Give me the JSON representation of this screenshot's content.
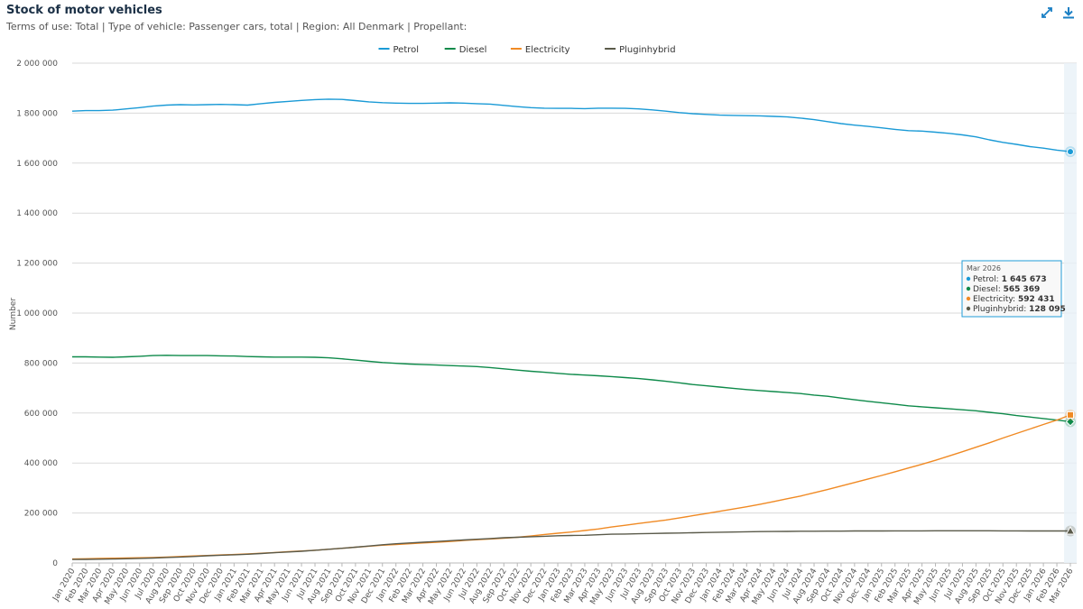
{
  "header": {
    "title": "Stock of motor vehicles",
    "subtitle": "Terms of use: Total | Type of vehicle: Passenger cars, total | Region: All Denmark | Propellant:"
  },
  "toolbar": {
    "expand_icon": "expand-arrows-icon",
    "download_icon": "download-icon",
    "accent": "#1a7fc4"
  },
  "chart_data": {
    "type": "line",
    "title": "Stock of motor vehicles",
    "xlabel": "",
    "ylabel": "Number",
    "ylim": [
      0,
      2000000
    ],
    "yticks": [
      0,
      200000,
      400000,
      600000,
      800000,
      1000000,
      1200000,
      1400000,
      1600000,
      1800000,
      2000000
    ],
    "ytick_labels": [
      "0",
      "200 000",
      "400 000",
      "600 000",
      "800 000",
      "1 000 000",
      "1 200 000",
      "1 400 000",
      "1 600 000",
      "1 800 000",
      "2 000 000"
    ],
    "grid": true,
    "legend_position": "top-center",
    "categories": [
      "Jan 2020",
      "Feb 2020",
      "Mar 2020",
      "Apr 2020",
      "May 2020",
      "Jun 2020",
      "Jul 2020",
      "Aug 2020",
      "Sep 2020",
      "Oct 2020",
      "Nov 2020",
      "Dec 2020",
      "Jan 2021",
      "Feb 2021",
      "Mar 2021",
      "Apr 2021",
      "May 2021",
      "Jun 2021",
      "Jul 2021",
      "Aug 2021",
      "Sep 2021",
      "Oct 2021",
      "Nov 2021",
      "Dec 2021",
      "Jan 2022",
      "Feb 2022",
      "Mar 2022",
      "Apr 2022",
      "May 2022",
      "Jun 2022",
      "Jul 2022",
      "Aug 2022",
      "Sep 2022",
      "Oct 2022",
      "Nov 2022",
      "Dec 2022",
      "Jan 2023",
      "Feb 2023",
      "Mar 2023",
      "Apr 2023",
      "May 2023",
      "Jun 2023",
      "Jul 2023",
      "Aug 2023",
      "Sep 2023",
      "Oct 2023",
      "Nov 2023",
      "Dec 2023",
      "Jan 2024",
      "Feb 2024",
      "Mar 2024",
      "Apr 2024",
      "May 2024",
      "Jun 2024",
      "Jul 2024",
      "Aug 2024",
      "Sep 2024",
      "Oct 2024",
      "Nov 2024",
      "Dec 2024",
      "Jan 2025",
      "Feb 2025",
      "Mar 2025",
      "Apr 2025",
      "May 2025",
      "Jun 2025",
      "Jul 2025",
      "Aug 2025",
      "Sep 2025",
      "Oct 2025",
      "Nov 2025",
      "Dec 2025",
      "Jan 2026",
      "Feb 2026",
      "Mar 2026"
    ],
    "series": [
      {
        "name": "Petrol",
        "color": "#1a9ad6",
        "marker": "circle",
        "values": [
          1808000,
          1810000,
          1810000,
          1812000,
          1817000,
          1822000,
          1828000,
          1832000,
          1834000,
          1833000,
          1834000,
          1835000,
          1834000,
          1832000,
          1838000,
          1843000,
          1847000,
          1851000,
          1854000,
          1856000,
          1855000,
          1850000,
          1845000,
          1842000,
          1840000,
          1839000,
          1839000,
          1840000,
          1841000,
          1840000,
          1838000,
          1836000,
          1831000,
          1826000,
          1822000,
          1820000,
          1819000,
          1819000,
          1818000,
          1820000,
          1820000,
          1819000,
          1817000,
          1813000,
          1808000,
          1802000,
          1798000,
          1795000,
          1792000,
          1791000,
          1790000,
          1789000,
          1787000,
          1785000,
          1780000,
          1774000,
          1766000,
          1758000,
          1752000,
          1747000,
          1741000,
          1735000,
          1730000,
          1728000,
          1724000,
          1719000,
          1713000,
          1705000,
          1693000,
          1683000,
          1675000,
          1666000,
          1660000,
          1652000,
          1645673
        ]
      },
      {
        "name": "Diesel",
        "color": "#0e8a4a",
        "marker": "diamond",
        "values": [
          825000,
          825000,
          824000,
          823000,
          825000,
          827000,
          830000,
          831000,
          830000,
          830000,
          830000,
          829000,
          828000,
          826000,
          825000,
          824000,
          824000,
          824000,
          823000,
          821000,
          817000,
          812000,
          807000,
          802000,
          799000,
          796000,
          794000,
          792000,
          790000,
          788000,
          786000,
          782000,
          777000,
          772000,
          767000,
          763000,
          759000,
          755000,
          752000,
          749000,
          746000,
          742000,
          738000,
          733000,
          727000,
          721000,
          714000,
          709000,
          704000,
          699000,
          694000,
          690000,
          686000,
          682000,
          678000,
          672000,
          667000,
          660000,
          653000,
          647000,
          641000,
          635000,
          629000,
          625000,
          621000,
          617000,
          613000,
          609000,
          603000,
          597000,
          590000,
          584000,
          578000,
          572000,
          565369
        ]
      },
      {
        "name": "Electricity",
        "color": "#f08a24",
        "marker": "square",
        "values": [
          16000,
          17000,
          18000,
          19000,
          20000,
          21000,
          22000,
          24000,
          26000,
          28000,
          30000,
          32000,
          34000,
          36000,
          39000,
          42000,
          45000,
          48000,
          51000,
          55000,
          59000,
          63000,
          67000,
          71000,
          74000,
          77000,
          80000,
          83000,
          86000,
          90000,
          93000,
          96000,
          99000,
          103000,
          108000,
          114000,
          119000,
          124000,
          130000,
          136000,
          144000,
          151000,
          158000,
          165000,
          172000,
          180000,
          189000,
          198000,
          207000,
          216000,
          225000,
          235000,
          246000,
          257000,
          268000,
          281000,
          294000,
          308000,
          322000,
          336000,
          350000,
          365000,
          380000,
          395000,
          411000,
          428000,
          445000,
          463000,
          481000,
          500000,
          518000,
          536000,
          554000,
          572000,
          592431
        ]
      },
      {
        "name": "Pluginhybrid",
        "color": "#5a5a4a",
        "marker": "triangle",
        "values": [
          14000,
          14500,
          15000,
          16000,
          17000,
          18500,
          20000,
          22000,
          24000,
          26000,
          29000,
          31000,
          33000,
          35000,
          38000,
          41000,
          44000,
          47000,
          51000,
          55000,
          59000,
          63000,
          68000,
          73000,
          77000,
          80000,
          83000,
          86000,
          89000,
          92000,
          95000,
          98000,
          101000,
          103000,
          105000,
          107000,
          109000,
          110000,
          111000,
          113000,
          115000,
          116000,
          117000,
          118000,
          119000,
          120000,
          121000,
          122000,
          123000,
          124000,
          125000,
          125500,
          126000,
          126500,
          127000,
          127000,
          127500,
          127500,
          128000,
          128000,
          128000,
          128500,
          128500,
          128500,
          129000,
          129000,
          129000,
          129000,
          129000,
          128500,
          128500,
          128000,
          128000,
          128000,
          128095
        ]
      }
    ],
    "tooltip": {
      "title": "Mar 2026",
      "rows": [
        {
          "name": "Petrol",
          "value": "1 645 673",
          "color": "#1a9ad6"
        },
        {
          "name": "Diesel",
          "value": "565 369",
          "color": "#0e8a4a"
        },
        {
          "name": "Electricity",
          "value": "592 431",
          "color": "#f08a24"
        },
        {
          "name": "Pluginhybrid",
          "value": "128 095",
          "color": "#5a5a4a"
        }
      ]
    }
  }
}
